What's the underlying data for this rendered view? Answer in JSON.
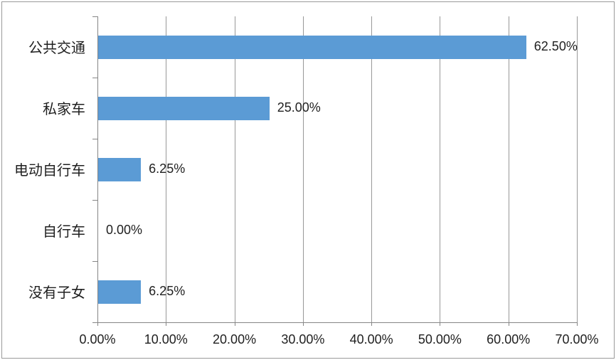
{
  "chart": {
    "colors": {
      "bar": "#5B9BD5",
      "gridline": "#989898",
      "axis": "#868686",
      "text": "#1F1F1F",
      "border": "#9A9A9A",
      "background": "#FFFFFF"
    }
  },
  "chart_data": {
    "type": "bar",
    "orientation": "horizontal",
    "title": "",
    "xlabel": "",
    "ylabel": "",
    "categories": [
      "公共交通",
      "私家车",
      "电动自行车",
      "自行车",
      "没有子女"
    ],
    "values": [
      62.5,
      25.0,
      6.25,
      0.0,
      6.25
    ],
    "value_labels": [
      "62.50%",
      "25.00%",
      "6.25%",
      "0.00%",
      "6.25%"
    ],
    "x_tick_values": [
      0,
      10,
      20,
      30,
      40,
      50,
      60,
      70
    ],
    "x_tick_labels": [
      "0.00%",
      "10.00%",
      "20.00%",
      "30.00%",
      "40.00%",
      "50.00%",
      "60.00%",
      "70.00%"
    ],
    "xlim": [
      0,
      70
    ],
    "grid": "vertical-only",
    "legend": "none",
    "data_labels": "outside-end"
  }
}
